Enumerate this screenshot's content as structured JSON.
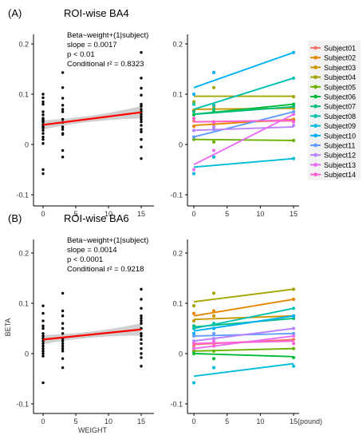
{
  "figure": {
    "y_axis_label": "BETA",
    "x_axis_label": "WEIGHT",
    "x_unit_suffix": "(pound)"
  },
  "series_colors": [
    "#f8766d",
    "#e58700",
    "#c99800",
    "#a3a500",
    "#6bb100",
    "#00ba38",
    "#00bf7d",
    "#00c0af",
    "#00bcd8",
    "#00b0f6",
    "#619cff",
    "#b983ff",
    "#e76bf3",
    "#fd61d1"
  ],
  "legend": {
    "entries": [
      "Subject01",
      "Subject02",
      "Subject03",
      "Subject04",
      "Subject05",
      "Subject06",
      "Subject07",
      "Subject08",
      "Subject09",
      "Subject10",
      "Subject11",
      "Subject12",
      "Subject13",
      "Subject14"
    ]
  },
  "chart_data": [
    {
      "type": "scatter",
      "panel": "(A)",
      "title": "ROI-wise BA4",
      "annotation": [
        "Beta~weight+(1|subject)",
        "slope = 0.0017",
        "p <  0.01",
        "Conditional r² = 0.8323"
      ],
      "x_ticks": [
        0,
        5,
        10,
        15
      ],
      "y_ticks": [
        "-0.1",
        "0",
        "0.1",
        "0.2"
      ],
      "xlim": [
        -1,
        16
      ],
      "ylim": [
        -0.12,
        0.215
      ],
      "fit_line": {
        "x": [
          0,
          15
        ],
        "y": [
          0.039,
          0.064
        ]
      },
      "points": {
        "x": [
          0,
          0,
          0,
          0,
          0,
          0,
          0,
          0,
          0,
          0,
          0,
          0,
          0,
          0,
          0,
          0,
          0,
          0,
          0,
          0,
          3,
          3,
          3,
          3,
          3,
          3,
          3,
          3,
          3,
          3,
          3,
          3,
          3,
          3,
          15,
          15,
          15,
          15,
          15,
          15,
          15,
          15,
          15,
          15,
          15,
          15,
          15,
          15,
          15,
          15,
          15,
          15
        ],
        "y": [
          0.1,
          0.093,
          0.085,
          0.08,
          0.065,
          0.059,
          0.052,
          0.049,
          0.047,
          0.045,
          0.04,
          0.036,
          0.033,
          0.028,
          0.022,
          0.015,
          0.01,
          0.002,
          -0.05,
          -0.058,
          0.143,
          0.113,
          0.092,
          0.078,
          0.07,
          0.065,
          0.05,
          0.044,
          0.035,
          0.03,
          0.022,
          0.02,
          -0.012,
          -0.025,
          0.183,
          0.132,
          0.112,
          0.098,
          0.08,
          0.076,
          0.07,
          0.065,
          0.06,
          0.055,
          0.05,
          0.045,
          0.038,
          0.03,
          0.025,
          0.01,
          -0.005,
          -0.028
        ]
      }
    },
    {
      "type": "line",
      "panel": "A-right",
      "x_ticks": [
        0,
        5,
        10,
        15
      ],
      "y_ticks": [
        "-0.1",
        "0",
        "0.1",
        "0.2"
      ],
      "xlim": [
        -1,
        16
      ],
      "ylim": [
        -0.12,
        0.215
      ],
      "x_unit_suffix": "",
      "series": [
        {
          "name": "Subject01",
          "fit": [
            0.045,
            0.047
          ],
          "points": [
            [
              0,
              0.047
            ],
            [
              3,
              0.045
            ],
            [
              15,
              0.048
            ]
          ]
        },
        {
          "name": "Subject02",
          "fit": [
            0.038,
            0.05
          ],
          "points": [
            [
              0,
              0.036
            ],
            [
              3,
              0.04
            ],
            [
              15,
              0.05
            ]
          ]
        },
        {
          "name": "Subject03",
          "fit": [
            0.07,
            0.072
          ],
          "points": [
            [
              0,
              0.068
            ],
            [
              3,
              0.075
            ],
            [
              15,
              0.072
            ]
          ]
        },
        {
          "name": "Subject04",
          "fit": [
            0.096,
            0.096
          ],
          "points": [
            [
              0,
              0.085
            ],
            [
              3,
              0.113
            ],
            [
              15,
              0.095
            ]
          ]
        },
        {
          "name": "Subject05",
          "fit": [
            0.01,
            0.008
          ],
          "points": [
            [
              0,
              0.01
            ],
            [
              3,
              0.005
            ],
            [
              15,
              0.008
            ]
          ]
        },
        {
          "name": "Subject06",
          "fit": [
            0.06,
            0.08
          ],
          "points": [
            [
              0,
              0.059
            ],
            [
              3,
              0.065
            ],
            [
              15,
              0.08
            ]
          ]
        },
        {
          "name": "Subject07",
          "fit": [
            0.06,
            0.075
          ],
          "points": [
            [
              0,
              0.065
            ],
            [
              3,
              0.07
            ],
            [
              15,
              0.076
            ]
          ]
        },
        {
          "name": "Subject08",
          "fit": [
            0.07,
            0.132
          ],
          "points": [
            [
              0,
              0.08
            ],
            [
              3,
              0.078
            ],
            [
              15,
              0.132
            ]
          ]
        },
        {
          "name": "Subject09",
          "fit": [
            -0.045,
            -0.028
          ],
          "points": [
            [
              0,
              -0.058
            ],
            [
              3,
              -0.025
            ],
            [
              15,
              -0.028
            ]
          ]
        },
        {
          "name": "Subject10",
          "fit": [
            0.113,
            0.183
          ],
          "points": [
            [
              0,
              0.1
            ],
            [
              3,
              0.143
            ],
            [
              15,
              0.183
            ]
          ]
        },
        {
          "name": "Subject11",
          "fit": [
            0.015,
            0.065
          ],
          "points": [
            [
              0,
              0.015
            ],
            [
              3,
              0.03
            ],
            [
              15,
              0.065
            ]
          ]
        },
        {
          "name": "Subject12",
          "fit": [
            0.028,
            0.035
          ],
          "points": [
            [
              0,
              0.028
            ],
            [
              3,
              0.035
            ],
            [
              15,
              0.038
            ]
          ]
        },
        {
          "name": "Subject13",
          "fit": [
            -0.04,
            0.06
          ],
          "points": [
            [
              0,
              -0.05
            ],
            [
              3,
              -0.012
            ],
            [
              15,
              0.06
            ]
          ]
        },
        {
          "name": "Subject14",
          "fit": [
            0.045,
            0.048
          ],
          "points": [
            [
              0,
              0.052
            ],
            [
              3,
              0.044
            ],
            [
              15,
              0.045
            ]
          ]
        }
      ]
    },
    {
      "type": "scatter",
      "panel": "(B)",
      "title": "ROI-wise BA6",
      "annotation": [
        "Beta~weight+(1|subject)",
        "slope = 0.0014",
        "p <  0.0001",
        "Conditional r² = 0.9218"
      ],
      "x_ticks": [
        0,
        5,
        10,
        15
      ],
      "y_ticks": [
        "-0.1",
        "0",
        "0.1",
        "0.2"
      ],
      "xlim": [
        -1,
        16
      ],
      "ylim": [
        -0.12,
        0.215
      ],
      "fit_line": {
        "x": [
          0,
          15
        ],
        "y": [
          0.028,
          0.048
        ]
      },
      "points": {
        "x": [
          0,
          0,
          0,
          0,
          0,
          0,
          0,
          0,
          0,
          0,
          0,
          0,
          0,
          0,
          0,
          0,
          3,
          3,
          3,
          3,
          3,
          3,
          3,
          3,
          3,
          3,
          3,
          3,
          3,
          3,
          15,
          15,
          15,
          15,
          15,
          15,
          15,
          15,
          15,
          15,
          15,
          15,
          15,
          15,
          15,
          15
        ],
        "y": [
          0.095,
          0.08,
          0.065,
          0.055,
          0.05,
          0.04,
          0.035,
          0.03,
          0.025,
          0.02,
          0.015,
          0.01,
          0.005,
          0,
          -0.005,
          -0.058,
          0.12,
          0.085,
          0.075,
          0.06,
          0.05,
          0.04,
          0.03,
          0.025,
          0.02,
          0.015,
          0.01,
          0.005,
          -0.01,
          -0.028,
          0.128,
          0.108,
          0.09,
          0.075,
          0.07,
          0.065,
          0.06,
          0.05,
          0.04,
          0.035,
          0.028,
          0.02,
          0.01,
          0,
          -0.008,
          -0.025
        ]
      }
    },
    {
      "type": "line",
      "panel": "B-right",
      "x_ticks": [
        0,
        5,
        10,
        15
      ],
      "y_ticks": [
        "-0.1",
        "0",
        "0.1",
        "0.2"
      ],
      "xlim": [
        -1,
        16
      ],
      "ylim": [
        -0.12,
        0.215
      ],
      "x_unit_suffix": "(pound)",
      "series": [
        {
          "name": "Subject01",
          "fit": [
            0.018,
            0.028
          ],
          "points": [
            [
              0,
              0.015
            ],
            [
              3,
              0.02
            ],
            [
              15,
              0.028
            ]
          ]
        },
        {
          "name": "Subject02",
          "fit": [
            0.075,
            0.108
          ],
          "points": [
            [
              0,
              0.08
            ],
            [
              3,
              0.085
            ],
            [
              15,
              0.108
            ]
          ]
        },
        {
          "name": "Subject03",
          "fit": [
            0.068,
            0.075
          ],
          "points": [
            [
              0,
              0.065
            ],
            [
              3,
              0.075
            ],
            [
              15,
              0.075
            ]
          ]
        },
        {
          "name": "Subject04",
          "fit": [
            0.103,
            0.128
          ],
          "points": [
            [
              0,
              0.095
            ],
            [
              3,
              0.12
            ],
            [
              15,
              0.128
            ]
          ]
        },
        {
          "name": "Subject05",
          "fit": [
            0.005,
            0.01
          ],
          "points": [
            [
              0,
              0.005
            ],
            [
              3,
              0.005
            ],
            [
              15,
              0.01
            ]
          ]
        },
        {
          "name": "Subject06",
          "fit": [
            0.0,
            -0.006
          ],
          "points": [
            [
              0,
              0.0
            ],
            [
              3,
              -0.01
            ],
            [
              15,
              -0.008
            ]
          ]
        },
        {
          "name": "Subject07",
          "fit": [
            0.053,
            0.07
          ],
          "points": [
            [
              0,
              0.055
            ],
            [
              3,
              0.05
            ],
            [
              15,
              0.07
            ]
          ]
        },
        {
          "name": "Subject08",
          "fit": [
            0.05,
            0.09
          ],
          "points": [
            [
              0,
              0.05
            ],
            [
              3,
              0.06
            ],
            [
              15,
              0.09
            ]
          ]
        },
        {
          "name": "Subject09",
          "fit": [
            -0.045,
            -0.02
          ],
          "points": [
            [
              0,
              -0.058
            ],
            [
              3,
              -0.028
            ],
            [
              15,
              -0.025
            ]
          ]
        },
        {
          "name": "Subject10",
          "fit": [
            0.045,
            0.075
          ],
          "points": [
            [
              0,
              0.04
            ],
            [
              3,
              0.05
            ],
            [
              15,
              0.075
            ]
          ]
        },
        {
          "name": "Subject11",
          "fit": [
            0.035,
            0.04
          ],
          "points": [
            [
              0,
              0.035
            ],
            [
              3,
              0.04
            ],
            [
              15,
              0.04
            ]
          ]
        },
        {
          "name": "Subject12",
          "fit": [
            0.025,
            0.05
          ],
          "points": [
            [
              0,
              0.025
            ],
            [
              3,
              0.03
            ],
            [
              15,
              0.05
            ]
          ]
        },
        {
          "name": "Subject13",
          "fit": [
            0.01,
            0.035
          ],
          "points": [
            [
              0,
              0.01
            ],
            [
              3,
              0.025
            ],
            [
              15,
              0.035
            ]
          ]
        },
        {
          "name": "Subject14",
          "fit": [
            0.02,
            0.025
          ],
          "points": [
            [
              0,
              0.02
            ],
            [
              3,
              0.015
            ],
            [
              15,
              0.02
            ]
          ]
        }
      ]
    }
  ]
}
